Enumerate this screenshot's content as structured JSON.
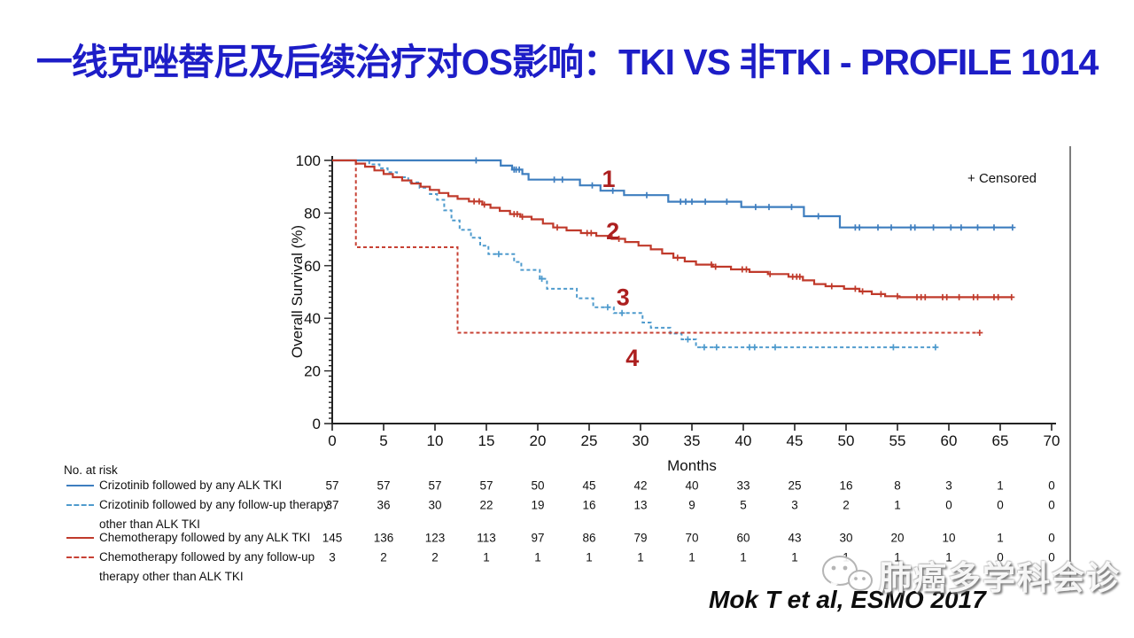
{
  "slide": {
    "title": "一线克唑替尼及后续治疗对OS影响：TKI VS 非TKI - PROFILE 1014",
    "title_color": "#1D1DC7",
    "citation": "Mok T et al, ESMO 2017",
    "watermark": "肺癌多学科会诊"
  },
  "chart_data": {
    "type": "line",
    "subtype": "kaplan-meier-step",
    "title": "",
    "xlabel": "Months",
    "ylabel": "Overall Survival (%)",
    "xlim": [
      0,
      70
    ],
    "ylim": [
      0,
      100
    ],
    "xticks": [
      0,
      5,
      10,
      15,
      20,
      25,
      30,
      35,
      40,
      45,
      50,
      55,
      60,
      65,
      70
    ],
    "yticks": [
      0,
      20,
      40,
      60,
      80,
      100
    ],
    "grid": false,
    "legend_note": "+ Censored",
    "curve_label_color": "#AC1F1F",
    "series": [
      {
        "id": "crizotinib-alk-tki",
        "name": "Crizotinib followed by any ALK TKI",
        "color": "#3E7EBF",
        "dash": "solid",
        "curve_label": "1",
        "curve_label_pos": [
          26.9,
          93
        ],
        "points": [
          [
            0,
            100
          ],
          [
            16.4,
            100
          ],
          [
            16.4,
            98
          ],
          [
            17.5,
            98
          ],
          [
            17.5,
            96.5
          ],
          [
            18.5,
            96.5
          ],
          [
            18.5,
            94.8
          ],
          [
            19.1,
            94.8
          ],
          [
            19.1,
            92.7
          ],
          [
            24.1,
            92.7
          ],
          [
            24.1,
            90.5
          ],
          [
            26.1,
            90.5
          ],
          [
            26.1,
            88.5
          ],
          [
            28.4,
            88.5
          ],
          [
            28.4,
            86.8
          ],
          [
            32.7,
            86.8
          ],
          [
            32.7,
            84.3
          ],
          [
            39.8,
            84.3
          ],
          [
            39.8,
            82.3
          ],
          [
            45.9,
            82.3
          ],
          [
            45.9,
            78.8
          ],
          [
            49.4,
            78.8
          ],
          [
            49.4,
            74.5
          ],
          [
            66.2,
            74.5
          ]
        ],
        "censors": [
          [
            14,
            100
          ],
          [
            17.7,
            96.5
          ],
          [
            17.9,
            96.5
          ],
          [
            18.2,
            96.5
          ],
          [
            21.6,
            92.7
          ],
          [
            22.4,
            92.7
          ],
          [
            25.3,
            90.5
          ],
          [
            27.3,
            88.5
          ],
          [
            30.6,
            86.8
          ],
          [
            33.9,
            84.3
          ],
          [
            34.4,
            84.3
          ],
          [
            35,
            84.3
          ],
          [
            36.3,
            84.3
          ],
          [
            38.4,
            84.3
          ],
          [
            41.2,
            82.3
          ],
          [
            42.5,
            82.3
          ],
          [
            44.7,
            82.3
          ],
          [
            47.3,
            78.8
          ],
          [
            50.9,
            74.5
          ],
          [
            51.3,
            74.5
          ],
          [
            53.1,
            74.5
          ],
          [
            54.4,
            74.5
          ],
          [
            56.3,
            74.5
          ],
          [
            56.7,
            74.5
          ],
          [
            58.5,
            74.5
          ],
          [
            60.2,
            74.5
          ],
          [
            61.2,
            74.5
          ],
          [
            62.8,
            74.5
          ],
          [
            64.4,
            74.5
          ],
          [
            66.2,
            74.5
          ]
        ]
      },
      {
        "id": "chemo-alk-tki",
        "name": "Chemotherapy followed by any ALK TKI",
        "color": "#C03A2B",
        "dash": "solid",
        "curve_label": "2",
        "curve_label_pos": [
          27.3,
          73
        ],
        "points": [
          [
            0,
            100
          ],
          [
            2.3,
            100
          ],
          [
            2.3,
            98.8
          ],
          [
            3.2,
            98.8
          ],
          [
            3.2,
            97.6
          ],
          [
            4.1,
            97.6
          ],
          [
            4.1,
            96.2
          ],
          [
            5,
            96.2
          ],
          [
            5,
            94.8
          ],
          [
            5.9,
            94.8
          ],
          [
            5.9,
            93.6
          ],
          [
            6.8,
            93.6
          ],
          [
            6.8,
            92.4
          ],
          [
            7.7,
            92.4
          ],
          [
            7.7,
            91.2
          ],
          [
            8.6,
            91.2
          ],
          [
            8.6,
            90
          ],
          [
            9.5,
            90
          ],
          [
            9.5,
            88.8
          ],
          [
            10.4,
            88.8
          ],
          [
            10.4,
            87.6
          ],
          [
            11.3,
            87.6
          ],
          [
            11.3,
            86.4
          ],
          [
            12.2,
            86.4
          ],
          [
            12.2,
            85.4
          ],
          [
            13.3,
            85.4
          ],
          [
            13.3,
            84.4
          ],
          [
            14.6,
            84.4
          ],
          [
            14.6,
            83.2
          ],
          [
            15.4,
            83.2
          ],
          [
            15.4,
            82
          ],
          [
            16.3,
            82
          ],
          [
            16.3,
            80.8
          ],
          [
            17.3,
            80.8
          ],
          [
            17.3,
            79.6
          ],
          [
            18.3,
            79.6
          ],
          [
            18.3,
            78.6
          ],
          [
            19.4,
            78.6
          ],
          [
            19.4,
            77.6
          ],
          [
            20.5,
            77.6
          ],
          [
            20.5,
            76
          ],
          [
            21.5,
            76
          ],
          [
            21.5,
            74.5
          ],
          [
            22.8,
            74.5
          ],
          [
            22.8,
            73.4
          ],
          [
            24.2,
            73.4
          ],
          [
            24.2,
            72.4
          ],
          [
            25.7,
            72.4
          ],
          [
            25.7,
            71.3
          ],
          [
            27.2,
            71.3
          ],
          [
            27.2,
            70.2
          ],
          [
            28.5,
            70.2
          ],
          [
            28.5,
            69
          ],
          [
            29.8,
            69
          ],
          [
            29.8,
            67.6
          ],
          [
            31,
            67.6
          ],
          [
            31,
            66.2
          ],
          [
            32.1,
            66.2
          ],
          [
            32.1,
            64.6
          ],
          [
            33.2,
            64.6
          ],
          [
            33.2,
            63
          ],
          [
            34.3,
            63
          ],
          [
            34.3,
            61.6
          ],
          [
            35.4,
            61.6
          ],
          [
            35.4,
            60.4
          ],
          [
            37,
            60.4
          ],
          [
            37,
            59.6
          ],
          [
            38.8,
            59.6
          ],
          [
            38.8,
            58.6
          ],
          [
            40.6,
            58.6
          ],
          [
            40.6,
            57.6
          ],
          [
            42.4,
            57.6
          ],
          [
            42.4,
            56.8
          ],
          [
            44.4,
            56.8
          ],
          [
            44.4,
            55.8
          ],
          [
            45.8,
            55.8
          ],
          [
            45.8,
            54.4
          ],
          [
            46.9,
            54.4
          ],
          [
            46.9,
            53
          ],
          [
            48,
            53
          ],
          [
            48,
            52.2
          ],
          [
            49.8,
            52.2
          ],
          [
            49.8,
            51.2
          ],
          [
            51.3,
            51.2
          ],
          [
            51.3,
            50.2
          ],
          [
            52.5,
            50.2
          ],
          [
            52.5,
            49.2
          ],
          [
            53.8,
            49.2
          ],
          [
            53.8,
            48.4
          ],
          [
            55.2,
            48.4
          ],
          [
            55.2,
            48
          ],
          [
            66.1,
            48
          ]
        ],
        "censors": [
          [
            13.8,
            84.4
          ],
          [
            14.3,
            84.4
          ],
          [
            14.8,
            83.2
          ],
          [
            17.7,
            79.6
          ],
          [
            18,
            79.6
          ],
          [
            18.5,
            78.6
          ],
          [
            21.9,
            74.5
          ],
          [
            24.8,
            72.4
          ],
          [
            25.2,
            72.4
          ],
          [
            27.9,
            70.2
          ],
          [
            33.6,
            63
          ],
          [
            36.9,
            60.4
          ],
          [
            37.3,
            59.6
          ],
          [
            39.9,
            58.6
          ],
          [
            40.3,
            58.6
          ],
          [
            42.6,
            56.8
          ],
          [
            44.8,
            55.8
          ],
          [
            45.2,
            55.8
          ],
          [
            45.5,
            55.8
          ],
          [
            48.6,
            52.2
          ],
          [
            50.9,
            51.2
          ],
          [
            51.6,
            50.2
          ],
          [
            53.4,
            49.2
          ],
          [
            55,
            48.4
          ],
          [
            56.9,
            48
          ],
          [
            57.3,
            48
          ],
          [
            57.7,
            48
          ],
          [
            59.4,
            48
          ],
          [
            59.8,
            48
          ],
          [
            61,
            48
          ],
          [
            62.4,
            48
          ],
          [
            62.8,
            48
          ],
          [
            64.4,
            48
          ],
          [
            64.8,
            48
          ],
          [
            66.1,
            48
          ]
        ]
      },
      {
        "id": "crizotinib-non-tki",
        "name": "Crizotinib followed by any follow-up therapy other than ALK TKI",
        "color": "#4F9BCD",
        "dash": "dashed",
        "curve_label": "3",
        "curve_label_pos": [
          28.3,
          48
        ],
        "points": [
          [
            0,
            100
          ],
          [
            3.6,
            100
          ],
          [
            3.6,
            98.5
          ],
          [
            4.6,
            98.5
          ],
          [
            4.6,
            97
          ],
          [
            5.4,
            97
          ],
          [
            5.4,
            95.5
          ],
          [
            6.3,
            95.5
          ],
          [
            6.3,
            93.6
          ],
          [
            7.4,
            93.6
          ],
          [
            7.4,
            91.6
          ],
          [
            8.5,
            91.6
          ],
          [
            8.5,
            89.6
          ],
          [
            9.5,
            89.6
          ],
          [
            9.5,
            87.2
          ],
          [
            10.2,
            87.2
          ],
          [
            10.2,
            85
          ],
          [
            10.9,
            85
          ],
          [
            10.9,
            81
          ],
          [
            11.6,
            81
          ],
          [
            11.6,
            77.2
          ],
          [
            12.4,
            77.2
          ],
          [
            12.4,
            73.6
          ],
          [
            13.5,
            73.6
          ],
          [
            13.5,
            70.6
          ],
          [
            14.4,
            70.6
          ],
          [
            14.4,
            67.6
          ],
          [
            15.2,
            67.6
          ],
          [
            15.2,
            64.4
          ],
          [
            17.7,
            64.4
          ],
          [
            17.7,
            61.4
          ],
          [
            18.4,
            61.4
          ],
          [
            18.4,
            58.4
          ],
          [
            20.2,
            58.4
          ],
          [
            20.2,
            55
          ],
          [
            20.9,
            55
          ],
          [
            20.9,
            51.2
          ],
          [
            23.8,
            51.2
          ],
          [
            23.8,
            47.6
          ],
          [
            25.4,
            47.6
          ],
          [
            25.4,
            44.2
          ],
          [
            27.4,
            44.2
          ],
          [
            27.4,
            42
          ],
          [
            30.2,
            42
          ],
          [
            30.2,
            38.4
          ],
          [
            31,
            38.4
          ],
          [
            31,
            36.4
          ],
          [
            32.9,
            36.4
          ],
          [
            32.9,
            34.2
          ],
          [
            34,
            34.2
          ],
          [
            34,
            32
          ],
          [
            35.4,
            32
          ],
          [
            35.4,
            29
          ],
          [
            58.8,
            29
          ]
        ],
        "censors": [
          [
            16.2,
            64.4
          ],
          [
            20.4,
            55
          ],
          [
            26.8,
            44.2
          ],
          [
            28.2,
            42
          ],
          [
            34.6,
            32
          ],
          [
            36.2,
            29
          ],
          [
            37.4,
            29
          ],
          [
            40.6,
            29
          ],
          [
            41.1,
            29
          ],
          [
            43.1,
            29
          ],
          [
            54.6,
            29
          ],
          [
            58.7,
            29
          ]
        ]
      },
      {
        "id": "chemo-non-tki",
        "name": "Chemotherapy followed by any follow-up therapy other than ALK TKI",
        "color": "#C74134",
        "dash": "dashed",
        "curve_label": "4",
        "curve_label_pos": [
          29.2,
          25
        ],
        "points": [
          [
            0,
            100
          ],
          [
            2.3,
            100
          ],
          [
            2.3,
            67
          ],
          [
            12.2,
            67
          ],
          [
            12.2,
            34.5
          ],
          [
            63,
            34.5
          ]
        ],
        "censors": [
          [
            63,
            34.5
          ]
        ]
      }
    ]
  },
  "at_risk": {
    "header": "No. at risk",
    "months": [
      0,
      5,
      10,
      15,
      20,
      25,
      30,
      35,
      40,
      45,
      50,
      55,
      60,
      65,
      70
    ],
    "rows": [
      {
        "series_id": "crizotinib-alk-tki",
        "color": "#3E7EBF",
        "dash": "solid",
        "label_lines": [
          "Crizotinib followed by any ALK TKI"
        ],
        "values": [
          57,
          57,
          57,
          57,
          50,
          45,
          42,
          40,
          33,
          25,
          16,
          8,
          3,
          1,
          0
        ]
      },
      {
        "series_id": "crizotinib-non-tki",
        "color": "#4F9BCD",
        "dash": "dashed",
        "label_lines": [
          "Crizotinib followed by any follow-up therapy",
          "other than ALK TKI"
        ],
        "values": [
          37,
          36,
          30,
          22,
          19,
          16,
          13,
          9,
          5,
          3,
          2,
          1,
          0,
          0,
          0
        ]
      },
      {
        "series_id": "chemo-alk-tki",
        "color": "#C03A2B",
        "dash": "solid",
        "label_lines": [
          "Chemotherapy followed by any ALK TKI"
        ],
        "values": [
          145,
          136,
          123,
          113,
          97,
          86,
          79,
          70,
          60,
          43,
          30,
          20,
          10,
          1,
          0
        ]
      },
      {
        "series_id": "chemo-non-tki",
        "color": "#C74134",
        "dash": "dashed",
        "label_lines": [
          "Chemotherapy followed by any follow-up",
          "therapy other than ALK TKI"
        ],
        "values": [
          3,
          2,
          2,
          1,
          1,
          1,
          1,
          1,
          1,
          1,
          1,
          1,
          1,
          0,
          0
        ]
      }
    ]
  }
}
